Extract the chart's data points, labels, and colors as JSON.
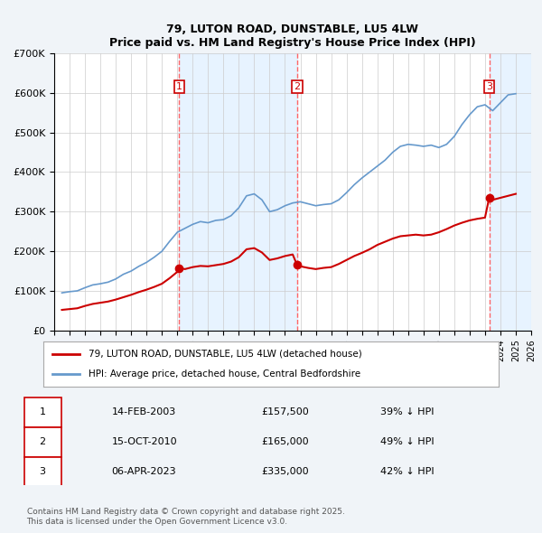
{
  "title": "79, LUTON ROAD, DUNSTABLE, LU5 4LW",
  "subtitle": "Price paid vs. HM Land Registry's House Price Index (HPI)",
  "legend_label_red": "79, LUTON ROAD, DUNSTABLE, LU5 4LW (detached house)",
  "legend_label_blue": "HPI: Average price, detached house, Central Bedfordshire",
  "footer": "Contains HM Land Registry data © Crown copyright and database right 2025.\nThis data is licensed under the Open Government Licence v3.0.",
  "sale_dates_num": [
    2003.12,
    2010.79,
    2023.27
  ],
  "sale_prices": [
    157500,
    165000,
    335000
  ],
  "sale_labels": [
    "1",
    "2",
    "3"
  ],
  "table_rows": [
    [
      "1",
      "14-FEB-2003",
      "£157,500",
      "39% ↓ HPI"
    ],
    [
      "2",
      "15-OCT-2010",
      "£165,000",
      "49% ↓ HPI"
    ],
    [
      "3",
      "06-APR-2023",
      "£335,000",
      "42% ↓ HPI"
    ]
  ],
  "vline_dates": [
    2003.12,
    2010.79,
    2023.27
  ],
  "xmin": 1995,
  "xmax": 2026,
  "ymin": 0,
  "ymax": 700000,
  "yticks": [
    0,
    100000,
    200000,
    300000,
    400000,
    500000,
    600000,
    700000
  ],
  "ytick_labels": [
    "£0",
    "£100K",
    "£200K",
    "£300K",
    "£400K",
    "£500K",
    "£600K",
    "£700K"
  ],
  "grid_color": "#cccccc",
  "bg_color": "#f0f4f8",
  "plot_bg": "#ffffff",
  "red_color": "#cc0000",
  "blue_color": "#6699cc",
  "vline_color": "#ff6666",
  "shade_color": "#ddeeff",
  "hpi_data": {
    "years": [
      1995.5,
      1996.0,
      1996.5,
      1997.0,
      1997.5,
      1998.0,
      1998.5,
      1999.0,
      1999.5,
      2000.0,
      2000.5,
      2001.0,
      2001.5,
      2002.0,
      2002.5,
      2003.0,
      2003.5,
      2004.0,
      2004.5,
      2005.0,
      2005.5,
      2006.0,
      2006.5,
      2007.0,
      2007.5,
      2008.0,
      2008.5,
      2009.0,
      2009.5,
      2010.0,
      2010.5,
      2011.0,
      2011.5,
      2012.0,
      2012.5,
      2013.0,
      2013.5,
      2014.0,
      2014.5,
      2015.0,
      2015.5,
      2016.0,
      2016.5,
      2017.0,
      2017.5,
      2018.0,
      2018.5,
      2019.0,
      2019.5,
      2020.0,
      2020.5,
      2021.0,
      2021.5,
      2022.0,
      2022.5,
      2023.0,
      2023.5,
      2024.0,
      2024.5,
      2025.0
    ],
    "values": [
      95000,
      98000,
      100000,
      108000,
      115000,
      118000,
      122000,
      130000,
      142000,
      150000,
      162000,
      172000,
      185000,
      200000,
      225000,
      248000,
      258000,
      268000,
      275000,
      272000,
      278000,
      280000,
      290000,
      310000,
      340000,
      345000,
      330000,
      300000,
      305000,
      315000,
      322000,
      325000,
      320000,
      315000,
      318000,
      320000,
      330000,
      348000,
      368000,
      385000,
      400000,
      415000,
      430000,
      450000,
      465000,
      470000,
      468000,
      465000,
      468000,
      462000,
      470000,
      490000,
      520000,
      545000,
      565000,
      570000,
      555000,
      575000,
      595000,
      598000
    ]
  },
  "red_data": {
    "years": [
      1995.5,
      1996.0,
      1996.5,
      1997.0,
      1997.5,
      1998.0,
      1998.5,
      1999.0,
      1999.5,
      2000.0,
      2000.5,
      2001.0,
      2001.5,
      2002.0,
      2002.5,
      2003.0,
      2003.12,
      2003.5,
      2004.0,
      2004.5,
      2005.0,
      2005.5,
      2006.0,
      2006.5,
      2007.0,
      2007.5,
      2008.0,
      2008.5,
      2009.0,
      2009.5,
      2010.0,
      2010.5,
      2010.79,
      2011.0,
      2011.5,
      2012.0,
      2012.5,
      2013.0,
      2013.5,
      2014.0,
      2014.5,
      2015.0,
      2015.5,
      2016.0,
      2016.5,
      2017.0,
      2017.5,
      2018.0,
      2018.5,
      2019.0,
      2019.5,
      2020.0,
      2020.5,
      2021.0,
      2021.5,
      2022.0,
      2022.5,
      2023.0,
      2023.27,
      2023.5,
      2024.0,
      2024.5,
      2025.0
    ],
    "values": [
      52000,
      54000,
      56000,
      62000,
      67000,
      70000,
      73000,
      78000,
      84000,
      90000,
      97000,
      103000,
      110000,
      118000,
      132000,
      148000,
      157500,
      155000,
      160000,
      163000,
      162000,
      165000,
      168000,
      174000,
      185000,
      205000,
      208000,
      197000,
      178000,
      182000,
      188000,
      192000,
      165000,
      162000,
      158000,
      155000,
      158000,
      160000,
      168000,
      178000,
      188000,
      196000,
      205000,
      216000,
      224000,
      232000,
      238000,
      240000,
      242000,
      240000,
      242000,
      248000,
      256000,
      265000,
      272000,
      278000,
      282000,
      285000,
      335000,
      330000,
      335000,
      340000,
      345000
    ]
  }
}
